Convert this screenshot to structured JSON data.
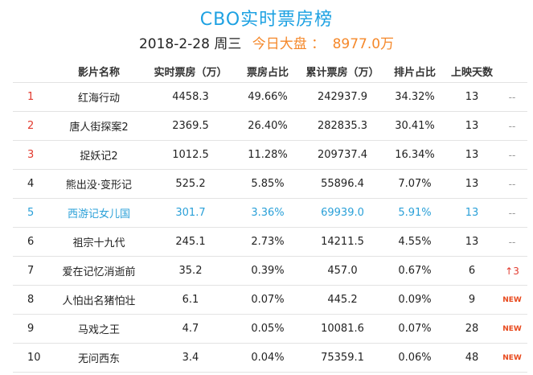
{
  "header": {
    "title": "CBO实时票房榜",
    "date": "2018-2-28 周三",
    "total_label": "今日大盘 ：",
    "total_value": "8977.0万"
  },
  "table": {
    "columns": [
      "",
      "影片名称",
      "实时票房（万）",
      "票房占比",
      "累计票房（万）",
      "排片占比",
      "上映天数",
      ""
    ],
    "rows": [
      {
        "rank": "1",
        "name": "红海行动",
        "box": "4458.3",
        "box_share": "49.66%",
        "total": "242937.9",
        "screen_share": "34.32%",
        "days": "13",
        "trend": "--",
        "trend_type": "flat"
      },
      {
        "rank": "2",
        "name": "唐人街探案2",
        "box": "2369.5",
        "box_share": "26.40%",
        "total": "282835.3",
        "screen_share": "30.41%",
        "days": "13",
        "trend": "--",
        "trend_type": "flat"
      },
      {
        "rank": "3",
        "name": "捉妖记2",
        "box": "1012.5",
        "box_share": "11.28%",
        "total": "209737.4",
        "screen_share": "16.34%",
        "days": "13",
        "trend": "--",
        "trend_type": "flat"
      },
      {
        "rank": "4",
        "name": "熊出没·变形记",
        "box": "525.2",
        "box_share": "5.85%",
        "total": "55896.4",
        "screen_share": "7.07%",
        "days": "13",
        "trend": "--",
        "trend_type": "flat"
      },
      {
        "rank": "5",
        "name": "西游记女儿国",
        "box": "301.7",
        "box_share": "3.36%",
        "total": "69939.0",
        "screen_share": "5.91%",
        "days": "13",
        "trend": "--",
        "trend_type": "flat"
      },
      {
        "rank": "6",
        "name": "祖宗十九代",
        "box": "245.1",
        "box_share": "2.73%",
        "total": "14211.5",
        "screen_share": "4.55%",
        "days": "13",
        "trend": "--",
        "trend_type": "flat"
      },
      {
        "rank": "7",
        "name": "爱在记忆消逝前",
        "box": "35.2",
        "box_share": "0.39%",
        "total": "457.0",
        "screen_share": "0.67%",
        "days": "6",
        "trend": "↑3",
        "trend_type": "up"
      },
      {
        "rank": "8",
        "name": "人怕出名猪怕壮",
        "box": "6.1",
        "box_share": "0.07%",
        "total": "445.2",
        "screen_share": "0.09%",
        "days": "9",
        "trend": "NEW",
        "trend_type": "new"
      },
      {
        "rank": "9",
        "name": "马戏之王",
        "box": "4.7",
        "box_share": "0.05%",
        "total": "10081.6",
        "screen_share": "0.07%",
        "days": "28",
        "trend": "NEW",
        "trend_type": "new"
      },
      {
        "rank": "10",
        "name": "无问西东",
        "box": "3.4",
        "box_share": "0.04%",
        "total": "75359.1",
        "screen_share": "0.06%",
        "days": "48",
        "trend": "NEW",
        "trend_type": "new"
      }
    ]
  },
  "colors": {
    "title": "#1da1e2",
    "accent_orange": "#f5882a",
    "rank_red": "#e23a2e",
    "highlight_blue": "#2aa0d8",
    "trend_new": "#e8491d"
  }
}
